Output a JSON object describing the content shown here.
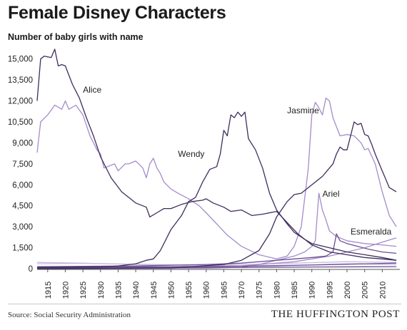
{
  "header": {
    "title": "Female Disney Characters",
    "subtitle": "Number of baby girls with name"
  },
  "footer": {
    "source": "Source: Social Security Administration",
    "brand": "THE HUFFINGTON POST"
  },
  "colors": {
    "dark": "#3f2d5c",
    "mid": "#6a4f94",
    "light": "#a48bcb",
    "faint": "#c9bce0",
    "axis": "#555555"
  },
  "chart_data": {
    "type": "line",
    "title": "Female Disney Characters",
    "ylabel": "Number of baby girls with name",
    "xlabel": "",
    "xlim": [
      1912,
      2015
    ],
    "ylim": [
      0,
      15750
    ],
    "yticks": [
      0,
      1500,
      3000,
      4500,
      6000,
      7500,
      9000,
      10500,
      12000,
      13500,
      15000
    ],
    "ytick_labels": [
      "0",
      "1,500",
      "3,000",
      "4,500",
      "6,000",
      "7,500",
      "9,000",
      "10,500",
      "12,000",
      "13,500",
      "15,000"
    ],
    "xticks": [
      1915,
      1920,
      1925,
      1930,
      1935,
      1940,
      1945,
      1950,
      1955,
      1960,
      1965,
      1970,
      1975,
      1980,
      1985,
      1990,
      1995,
      2000,
      2005,
      2010
    ],
    "grid": false,
    "legend": "none",
    "series": [
      {
        "name": "Alice",
        "color": "dark",
        "x": [
          1912,
          1913,
          1914,
          1916,
          1917,
          1918,
          1919,
          1920,
          1922,
          1924,
          1926,
          1928,
          1930,
          1933,
          1936,
          1940,
          1943,
          1944,
          1946,
          1948,
          1950,
          1953,
          1956,
          1959,
          1960,
          1962,
          1965,
          1967,
          1970,
          1973,
          1976,
          1980,
          1983,
          1986,
          1990,
          1995,
          2000,
          2005,
          2010,
          2014
        ],
        "y": [
          12000,
          15000,
          15200,
          15100,
          15700,
          14500,
          14600,
          14500,
          13200,
          12200,
          10800,
          9500,
          8000,
          6500,
          5500,
          4700,
          4400,
          3700,
          4000,
          4300,
          4300,
          4600,
          4800,
          4900,
          5000,
          4700,
          4400,
          4100,
          4200,
          3800,
          3900,
          4100,
          3300,
          2500,
          1700,
          1200,
          1000,
          800,
          700,
          600
        ]
      },
      {
        "name": "Wendy",
        "color": "dark",
        "x": [
          1912,
          1920,
          1930,
          1935,
          1940,
          1943,
          1945,
          1947,
          1950,
          1953,
          1955,
          1957,
          1959,
          1961,
          1963,
          1964,
          1965,
          1966,
          1967,
          1968,
          1969,
          1970,
          1971,
          1972,
          1974,
          1976,
          1978,
          1980,
          1983,
          1985,
          1988,
          1990,
          1995,
          2000,
          2005,
          2010,
          2014
        ],
        "y": [
          80,
          90,
          120,
          200,
          350,
          600,
          700,
          1300,
          2800,
          3800,
          4800,
          5100,
          6200,
          7100,
          7300,
          8200,
          9900,
          9500,
          11000,
          10800,
          11200,
          10900,
          11200,
          9300,
          8500,
          7200,
          5400,
          4200,
          3200,
          2600,
          2100,
          1800,
          1500,
          1200,
          1000,
          800,
          600
        ]
      },
      {
        "name": "Jasmine",
        "color": "dark",
        "x": [
          1912,
          1950,
          1965,
          1970,
          1975,
          1978,
          1980,
          1983,
          1985,
          1987,
          1989,
          1991,
          1993,
          1995,
          1996,
          1997,
          1998,
          1999,
          2000,
          2001,
          2002,
          2003,
          2004,
          2005,
          2006,
          2007,
          2008,
          2010,
          2012,
          2014
        ],
        "y": [
          0,
          50,
          300,
          600,
          1300,
          2500,
          3700,
          4800,
          5300,
          5400,
          5800,
          6200,
          6600,
          7200,
          7500,
          8200,
          8700,
          8500,
          8500,
          9500,
          10500,
          10300,
          10400,
          9600,
          9500,
          8900,
          8200,
          7000,
          5800,
          5500
        ]
      },
      {
        "name": "Ariel",
        "color": "light",
        "x": [
          1912,
          1960,
          1970,
          1975,
          1980,
          1985,
          1988,
          1990,
          1991,
          1992,
          1993,
          1994,
          1995,
          1997,
          2000,
          2005,
          2010,
          2014
        ],
        "y": [
          0,
          30,
          100,
          300,
          600,
          900,
          1200,
          1600,
          2000,
          5400,
          4200,
          3500,
          2700,
          2300,
          2000,
          1800,
          1700,
          1600
        ]
      },
      {
        "name": "Esmeralda",
        "color": "mid",
        "x": [
          1912,
          1940,
          1960,
          1970,
          1980,
          1985,
          1990,
          1994,
          1996,
          1997,
          1998,
          2000,
          2003,
          2006,
          2010,
          2014
        ],
        "y": [
          150,
          200,
          300,
          400,
          600,
          700,
          800,
          900,
          1200,
          2500,
          2000,
          1800,
          1600,
          1400,
          1200,
          1100
        ]
      },
      {
        "name": "",
        "color": "light",
        "x": [
          1912,
          1913,
          1915,
          1917,
          1919,
          1920,
          1921,
          1923,
          1925,
          1927,
          1929,
          1930,
          1931,
          1932,
          1934,
          1935,
          1937,
          1938,
          1940,
          1942,
          1943,
          1944,
          1945,
          1946,
          1947,
          1948,
          1950,
          1952,
          1955,
          1958,
          1960,
          1963,
          1966,
          1970,
          1975,
          1980,
          1983,
          1985,
          1987,
          1989,
          1990,
          1991,
          1992,
          1993,
          1994,
          1995,
          1996,
          1998,
          2000,
          2002,
          2004,
          2005,
          2006,
          2008,
          2010,
          2012,
          2014
        ],
        "y": [
          8300,
          10500,
          11000,
          11700,
          11400,
          12000,
          11400,
          11700,
          11000,
          9500,
          8500,
          8200,
          7200,
          7300,
          7500,
          7000,
          7500,
          7500,
          7700,
          7200,
          6500,
          7500,
          7900,
          7200,
          6800,
          6200,
          5700,
          5400,
          5000,
          4500,
          4000,
          3200,
          2400,
          1600,
          1000,
          700,
          900,
          1600,
          3000,
          7200,
          11000,
          11900,
          11500,
          11000,
          12200,
          12000,
          10800,
          9500,
          9600,
          9500,
          9000,
          8500,
          8600,
          7500,
          5500,
          3800,
          3000
        ]
      },
      {
        "name": "",
        "color": "light",
        "x": [
          1912,
          1950,
          1970,
          1985,
          1995,
          2000,
          2005,
          2010,
          2014
        ],
        "y": [
          60,
          100,
          200,
          500,
          900,
          1200,
          1500,
          1900,
          2200
        ]
      },
      {
        "name": "",
        "color": "faint",
        "x": [
          1912,
          1925,
          1940,
          1955,
          1970,
          1985,
          2000,
          2014
        ],
        "y": [
          450,
          400,
          300,
          250,
          300,
          400,
          500,
          450
        ]
      },
      {
        "name": "",
        "color": "faint",
        "x": [
          1912,
          1925,
          1940,
          1955,
          1970,
          1985,
          2000,
          2014
        ],
        "y": [
          350,
          380,
          320,
          260,
          200,
          250,
          350,
          300
        ]
      },
      {
        "name": "",
        "color": "mid",
        "x": [
          1912,
          1930,
          1950,
          1970,
          1990,
          2000,
          2014
        ],
        "y": [
          100,
          130,
          150,
          180,
          260,
          320,
          400
        ]
      },
      {
        "name": "",
        "color": "mid",
        "x": [
          1912,
          1930,
          1950,
          1970,
          1990,
          2014
        ],
        "y": [
          40,
          60,
          80,
          90,
          120,
          150
        ]
      }
    ],
    "labels": [
      {
        "text": "Alice",
        "x": 1925,
        "y": 12600
      },
      {
        "text": "Wendy",
        "x": 1952,
        "y": 8000
      },
      {
        "text": "Jasmine",
        "x": 1983,
        "y": 11100
      },
      {
        "text": "Ariel",
        "x": 1993,
        "y": 5150
      },
      {
        "text": "Esmeralda",
        "x": 2001,
        "y": 2450
      }
    ]
  }
}
